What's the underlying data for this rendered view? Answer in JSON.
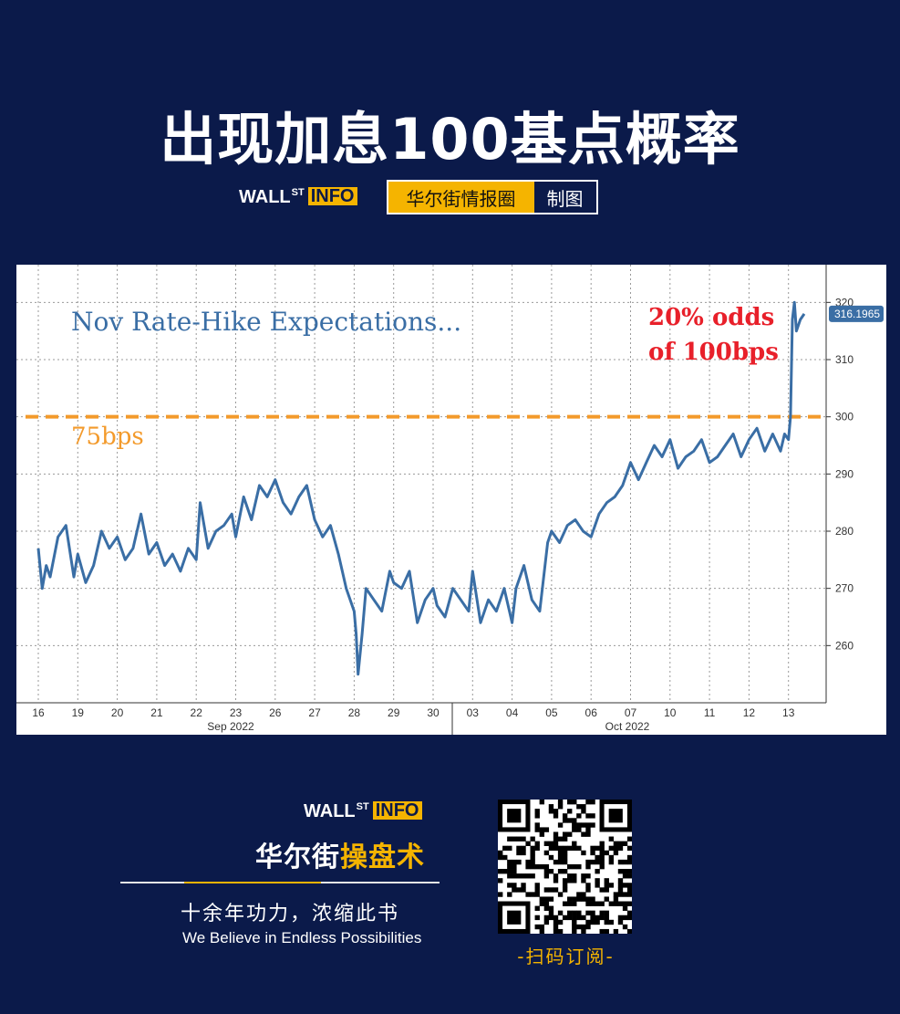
{
  "header": {
    "title": "出现加息100基点概率",
    "logo_main": "WALL",
    "logo_st": "ST",
    "logo_info": "INFO",
    "tag_left": "华尔街情报圈",
    "tag_right": "制图"
  },
  "colors": {
    "background": "#0b1a4a",
    "accent": "#f5b400",
    "series": "#3a6ea5",
    "threshold": "#f39a2b",
    "annotation": "#e8202a"
  },
  "chart_data": {
    "type": "line",
    "title": "Nov Rate-Hike Expectations...",
    "ylim": [
      250,
      325
    ],
    "yticks": [
      260,
      270,
      280,
      290,
      300,
      310,
      320
    ],
    "x_tick_labels": [
      "16",
      "19",
      "20",
      "21",
      "22",
      "23",
      "26",
      "27",
      "28",
      "29",
      "30",
      "03",
      "04",
      "05",
      "06",
      "07",
      "10",
      "11",
      "12",
      "13"
    ],
    "month_labels": [
      "Sep 2022",
      "Oct 2022"
    ],
    "threshold": {
      "value": 300,
      "label": "75bps"
    },
    "annotation": "20% odds\nof 100bps",
    "last_value_label": "316.1965",
    "grid": true,
    "series": [
      {
        "x": [
          0,
          0.1,
          0.2,
          0.3,
          0.5,
          0.7,
          0.9,
          1.0,
          1.2,
          1.4,
          1.6,
          1.8,
          2.0,
          2.2,
          2.4,
          2.6,
          2.8,
          3.0,
          3.2,
          3.4,
          3.6,
          3.8,
          4.0,
          4.1,
          4.3,
          4.5,
          4.7,
          4.9,
          5.0,
          5.2,
          5.4,
          5.6,
          5.8,
          6.0,
          6.2,
          6.4,
          6.6,
          6.8,
          7.0,
          7.2,
          7.4,
          7.6,
          7.8,
          8.0,
          8.05,
          8.1,
          8.2,
          8.3,
          8.5,
          8.7,
          8.9,
          9.0,
          9.2,
          9.4,
          9.6,
          9.8,
          10.0,
          10.1,
          10.3,
          10.5,
          10.7,
          10.9,
          11.0,
          11.2,
          11.4,
          11.6,
          11.8,
          12.0,
          12.1,
          12.3,
          12.5,
          12.7,
          12.9,
          13.0,
          13.2,
          13.4,
          13.6,
          13.8,
          14.0,
          14.2,
          14.4,
          14.6,
          14.8,
          15.0,
          15.2,
          15.4,
          15.6,
          15.8,
          16.0,
          16.2,
          16.4,
          16.6,
          16.8,
          17.0,
          17.2,
          17.4,
          17.6,
          17.8,
          18.0,
          18.2,
          18.4,
          18.6,
          18.8,
          18.9,
          19.0,
          19.05,
          19.1,
          19.15,
          19.2,
          19.3,
          19.4
        ],
        "values": [
          277,
          270,
          274,
          272,
          279,
          281,
          272,
          276,
          271,
          274,
          280,
          277,
          279,
          275,
          277,
          283,
          276,
          278,
          274,
          276,
          273,
          277,
          275,
          285,
          277,
          280,
          281,
          283,
          279,
          286,
          282,
          288,
          286,
          289,
          285,
          283,
          286,
          288,
          282,
          279,
          281,
          276,
          270,
          266,
          262,
          255,
          262,
          270,
          268,
          266,
          273,
          271,
          270,
          273,
          264,
          268,
          270,
          267,
          265,
          270,
          268,
          266,
          273,
          264,
          268,
          266,
          270,
          264,
          270,
          274,
          268,
          266,
          278,
          280,
          278,
          281,
          282,
          280,
          279,
          283,
          285,
          286,
          288,
          292,
          289,
          292,
          295,
          293,
          296,
          291,
          293,
          294,
          296,
          292,
          293,
          295,
          297,
          293,
          296,
          298,
          294,
          297,
          294,
          297,
          296,
          300,
          317,
          320,
          315,
          317,
          318
        ]
      }
    ]
  },
  "footer": {
    "logo_main": "WALL",
    "logo_st": "ST",
    "logo_info": "INFO",
    "brand_a": "华尔街",
    "brand_b": "操盘术",
    "slogan": "十余年功力，浓缩此书",
    "motto": "We Believe in Endless Possibilities",
    "scan_label": "-扫码订阅-"
  }
}
